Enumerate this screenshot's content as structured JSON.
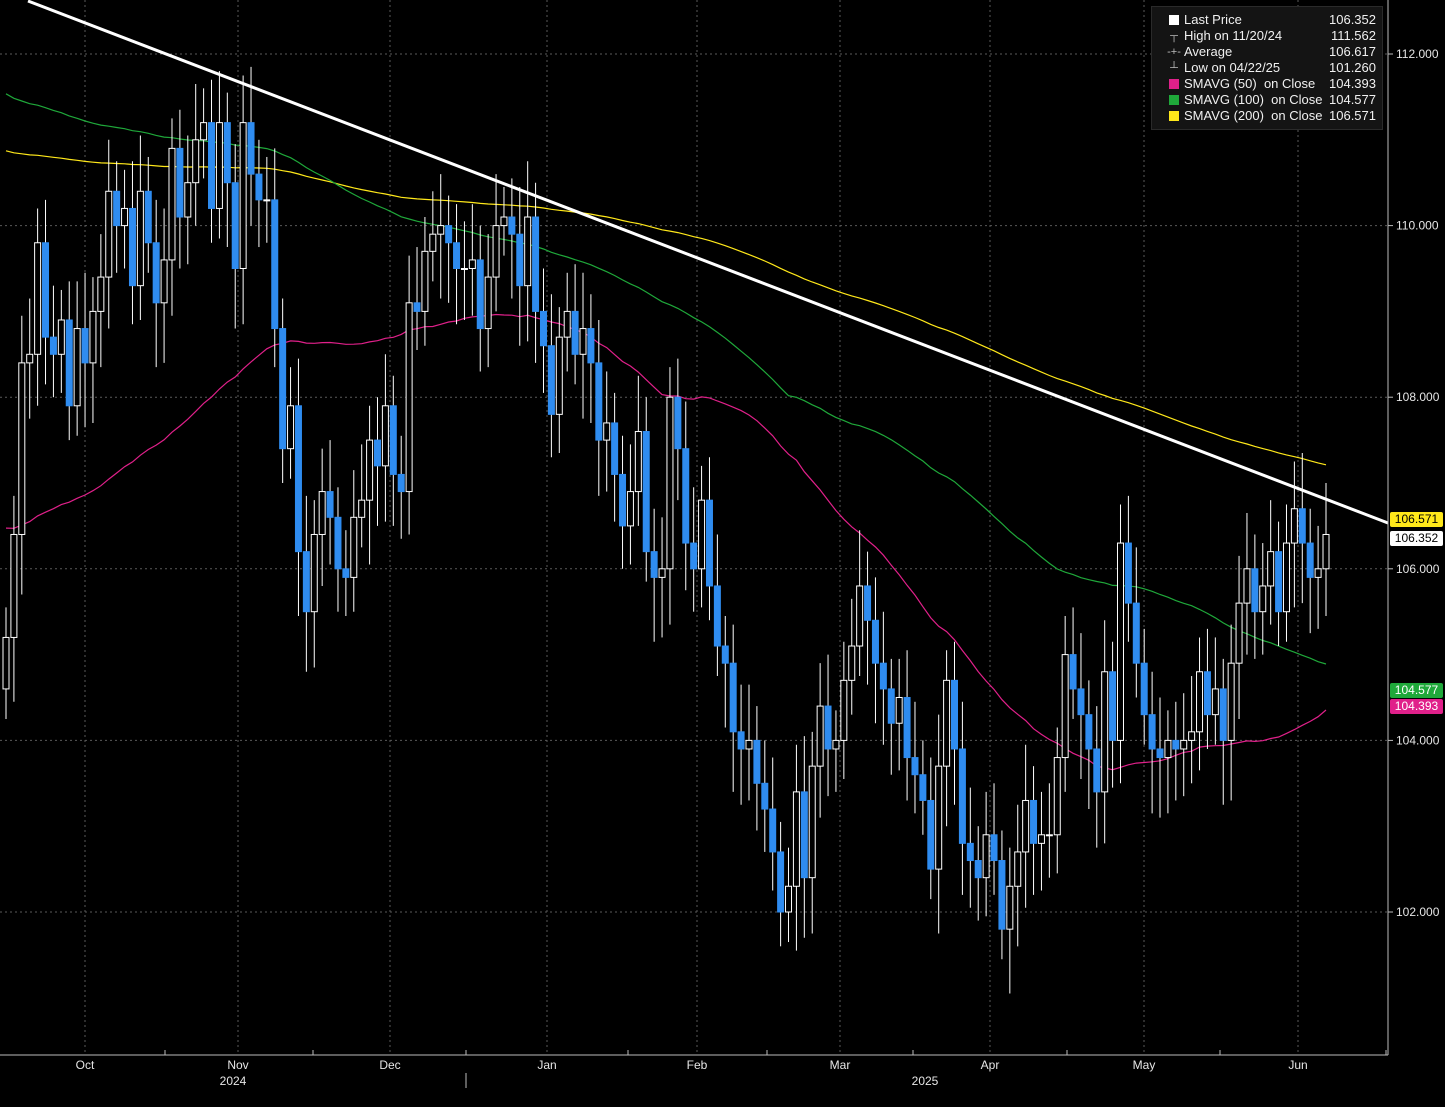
{
  "chart_data": {
    "type": "candlestick",
    "title": "",
    "ylim": [
      100.7,
      112.6
    ],
    "y_ticks": [
      "102.000",
      "104.000",
      "106.000",
      "108.000",
      "110.000",
      "112.000"
    ],
    "month_labels": [
      "Oct",
      "Nov",
      "Dec",
      "Jan",
      "Feb",
      "Mar",
      "Apr",
      "May",
      "Jun"
    ],
    "year_labels": [
      "2024",
      "2025"
    ],
    "grid": true,
    "legend_position": "top-right",
    "legend": [
      {
        "label": "Last Price",
        "value": "106.352",
        "swatch": "#ffffff",
        "glyph": ""
      },
      {
        "label": "High on 11/20/24",
        "value": "111.562",
        "swatch": "",
        "glyph": "┬"
      },
      {
        "label": "Average",
        "value": "106.617",
        "swatch": "",
        "glyph": "-+-"
      },
      {
        "label": "Low on 04/22/25",
        "value": "101.260",
        "swatch": "",
        "glyph": "┴"
      },
      {
        "label": "SMAVG (50)  on Close",
        "value": "104.393",
        "swatch": "#e0208a",
        "glyph": ""
      },
      {
        "label": "SMAVG (100)  on Close",
        "value": "104.577",
        "swatch": "#1fa83a",
        "glyph": ""
      },
      {
        "label": "SMAVG (200)  on Close",
        "value": "106.571",
        "swatch": "#ffe81a",
        "glyph": ""
      }
    ],
    "price_tags": [
      {
        "value": "106.571",
        "bg": "#ffe81a",
        "fg": "#000000"
      },
      {
        "value": "106.352",
        "bg": "#ffffff",
        "fg": "#000000"
      },
      {
        "value": "104.577",
        "bg": "#1fa83a",
        "fg": "#ffffff"
      },
      {
        "value": "104.393",
        "bg": "#e0208a",
        "fg": "#ffffff"
      }
    ],
    "colors": {
      "up": "#ffffff",
      "down": "#2f8cf0",
      "sma50": "#e0208a",
      "sma100": "#1fa83a",
      "sma200": "#ffe81a",
      "trend": "#ffffff",
      "grid": "#5a5a5a"
    },
    "closes": [
      105.2,
      106.4,
      108.4,
      108.5,
      109.8,
      108.7,
      108.5,
      108.9,
      107.9,
      108.8,
      108.4,
      109.0,
      109.4,
      110.4,
      110.0,
      110.2,
      109.3,
      110.4,
      109.8,
      109.1,
      109.6,
      110.9,
      110.1,
      110.5,
      111.0,
      111.2,
      110.2,
      111.2,
      110.5,
      109.5,
      111.2,
      110.6,
      110.3,
      110.3,
      108.8,
      107.4,
      107.9,
      106.2,
      105.5,
      106.4,
      106.9,
      106.6,
      106.0,
      105.9,
      106.6,
      106.8,
      107.5,
      107.2,
      107.9,
      107.1,
      106.9,
      109.1,
      109.0,
      109.7,
      109.9,
      110.0,
      109.8,
      109.5,
      109.5,
      109.6,
      108.8,
      109.4,
      110.0,
      110.1,
      109.9,
      109.3,
      110.1,
      109.0,
      108.6,
      107.8,
      108.7,
      109.0,
      108.5,
      108.8,
      108.4,
      107.5,
      107.7,
      107.1,
      106.5,
      106.9,
      107.6,
      106.2,
      105.9,
      106.0,
      108.0,
      107.4,
      106.3,
      106.0,
      106.8,
      105.8,
      105.1,
      104.9,
      104.1,
      103.9,
      104.0,
      103.5,
      103.2,
      102.7,
      102.0,
      102.3,
      103.4,
      102.4,
      103.7,
      104.4,
      103.9,
      104.0,
      104.7,
      105.1,
      105.8,
      105.4,
      104.9,
      104.6,
      104.2,
      104.5,
      103.8,
      103.6,
      103.3,
      102.5,
      103.7,
      104.7,
      103.9,
      102.8,
      102.6,
      102.4,
      102.9,
      102.6,
      101.8,
      102.3,
      102.7,
      103.3,
      102.8,
      102.9,
      102.9,
      103.8,
      105.0,
      104.6,
      104.3,
      103.9,
      103.4,
      104.8,
      104.0,
      106.3,
      105.6,
      104.9,
      104.3,
      103.9,
      103.8,
      104.0,
      103.9,
      104.0,
      104.1,
      104.8,
      104.3,
      104.6,
      104.0,
      104.9,
      105.6,
      106.0,
      105.5,
      105.8,
      106.2,
      105.5,
      106.3,
      106.7,
      106.3,
      105.9,
      106.0,
      106.4
    ]
  }
}
